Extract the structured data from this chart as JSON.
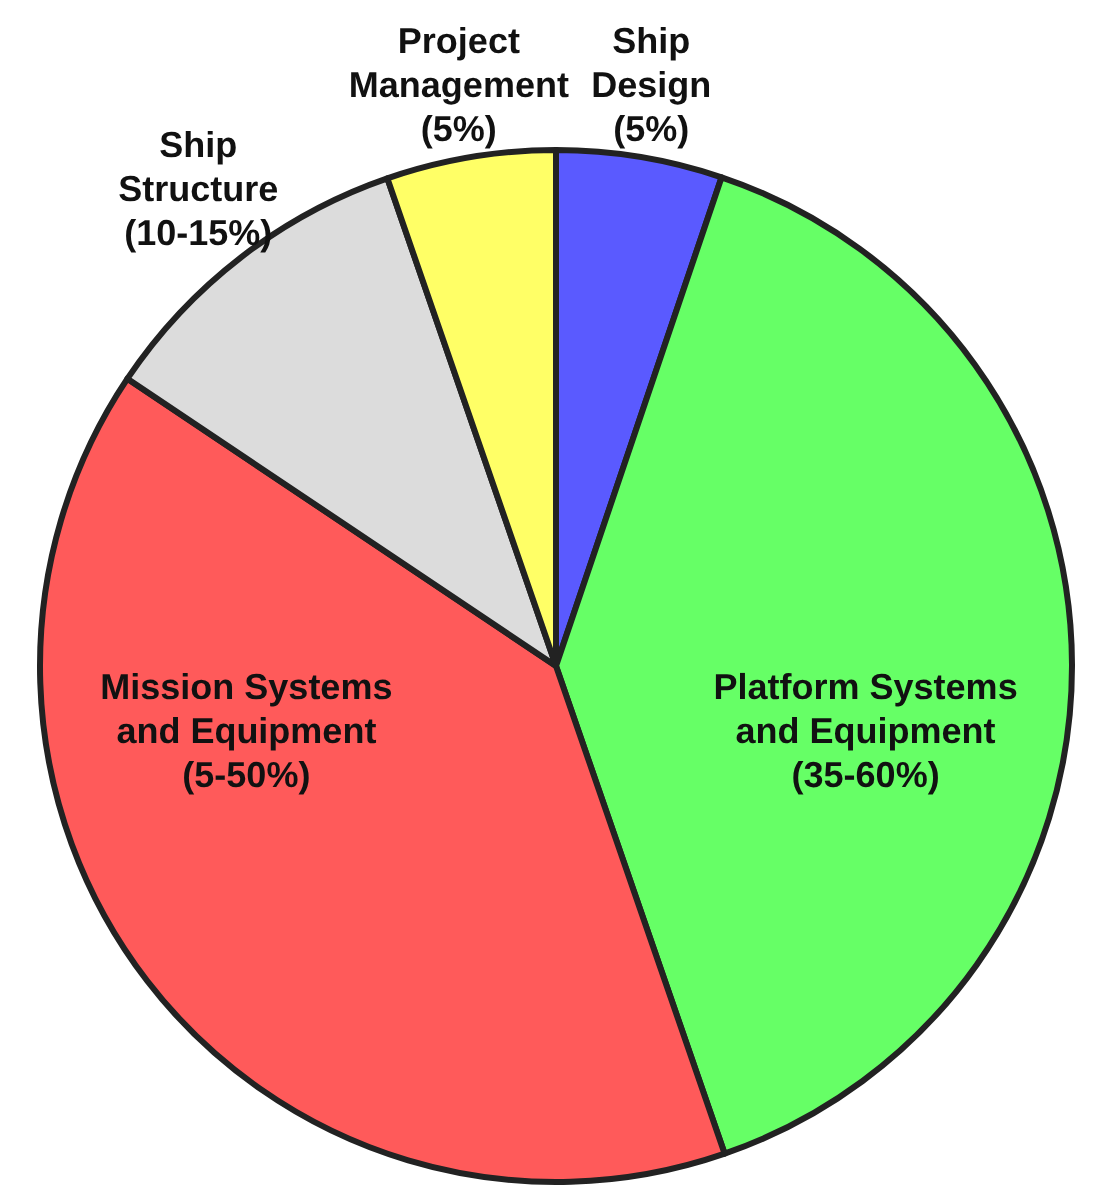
{
  "chart_data": {
    "type": "pie",
    "categories": [
      "Ship Design (5%)",
      "Platform Systems and Equipment (35-60%)",
      "Mission Systems and Equipment (5-50%)",
      "Ship Structure (10-15%)",
      "Project Management (5%)"
    ],
    "values": [
      5.2,
      39.5,
      39.7,
      10.3,
      5.3
    ],
    "colors": [
      "#5a5aff",
      "#66ff66",
      "#ff5a5a",
      "#dcdcdc",
      "#ffff66"
    ]
  }
}
